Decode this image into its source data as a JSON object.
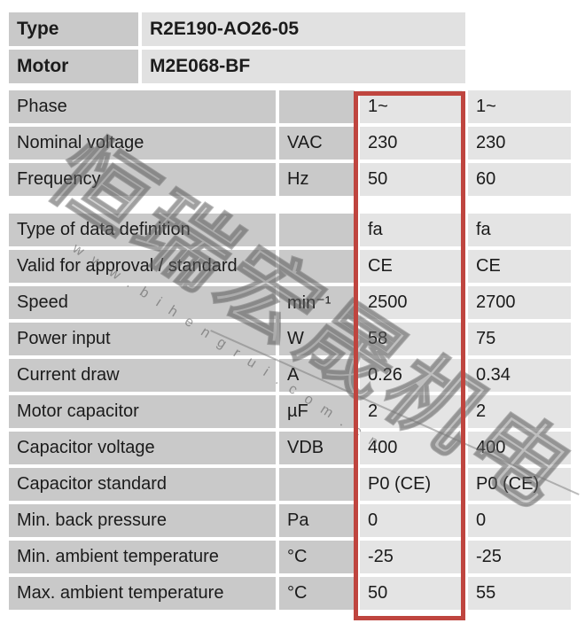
{
  "colors": {
    "page-bg": "#ffffff",
    "label-cell-bg": "#c9c9c9",
    "value-cell-bg": "#e4e4e4",
    "header-value-bg": "#e1e1e1",
    "text": "#1b1b1b",
    "highlight-red": "#bf453f"
  },
  "watermark": {
    "text": "恒瑞宏晟机电",
    "url": "www.bihengrui.com.cn"
  },
  "header": {
    "rows": [
      {
        "label": "Type",
        "value": "R2E190-AO26-05"
      },
      {
        "label": "Motor",
        "value": "M2E068-BF"
      }
    ]
  },
  "spec_table": {
    "columns": [
      "parameter",
      "unit",
      "value_50hz",
      "value_60hz"
    ],
    "highlighted_column": "value_50hz",
    "rows": [
      {
        "label": "Phase",
        "unit": "",
        "values": [
          "1~",
          "1~"
        ]
      },
      {
        "label": "Nominal voltage",
        "unit": "VAC",
        "values": [
          "230",
          "230"
        ]
      },
      {
        "label": "Frequency",
        "unit": "Hz",
        "values": [
          "50",
          "60"
        ]
      },
      {
        "label": "Type of data definition",
        "unit": "",
        "values": [
          "fa",
          "fa"
        ],
        "section_break_before": true
      },
      {
        "label": "Valid for approval / standard",
        "unit": "",
        "values": [
          "CE",
          "CE"
        ]
      },
      {
        "label": "Speed",
        "unit": "min⁻¹",
        "values": [
          "2500",
          "2700"
        ]
      },
      {
        "label": "Power input",
        "unit": "W",
        "values": [
          "58",
          "75"
        ]
      },
      {
        "label": "Current draw",
        "unit": "A",
        "values": [
          "0.26",
          "0.34"
        ]
      },
      {
        "label": "Motor capacitor",
        "unit": "µF",
        "values": [
          "2",
          "2"
        ]
      },
      {
        "label": "Capacitor voltage",
        "unit": "VDB",
        "values": [
          "400",
          "400"
        ]
      },
      {
        "label": "Capacitor standard",
        "unit": "",
        "values": [
          "P0 (CE)",
          "P0 (CE)"
        ]
      },
      {
        "label": "Min. back pressure",
        "unit": "Pa",
        "values": [
          "0",
          "0"
        ]
      },
      {
        "label": "Min. ambient temperature",
        "unit": "°C",
        "values": [
          "-25",
          "-25"
        ]
      },
      {
        "label": "Max. ambient temperature",
        "unit": "°C",
        "values": [
          "50",
          "55"
        ]
      }
    ]
  }
}
